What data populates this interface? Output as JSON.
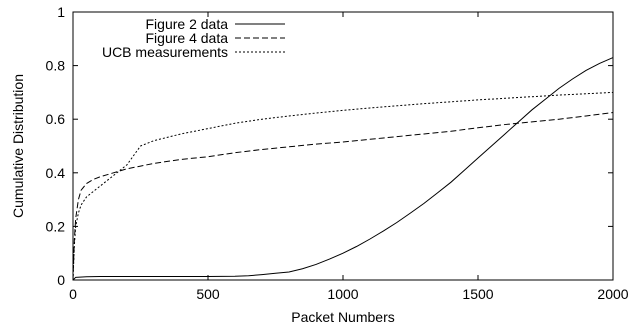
{
  "chart_data": {
    "type": "line",
    "title": "",
    "xlabel": "Packet Numbers",
    "ylabel": "Cumulative Distribution",
    "xlim": [
      0,
      2000
    ],
    "ylim": [
      0,
      1
    ],
    "xticks": [
      "0",
      "500",
      "1000",
      "1500",
      "2000"
    ],
    "yticks": [
      "0",
      "0.2",
      "0.4",
      "0.6",
      "0.8",
      "1"
    ],
    "grid": false,
    "legend_position": "top-left",
    "series": [
      {
        "name": "Figure 2 data",
        "style": "solid",
        "x": [
          0,
          10,
          50,
          100,
          200,
          300,
          400,
          500,
          600,
          650,
          700,
          750,
          800,
          850,
          900,
          950,
          1000,
          1050,
          1100,
          1150,
          1200,
          1250,
          1300,
          1350,
          1400,
          1450,
          1500,
          1550,
          1600,
          1650,
          1700,
          1750,
          1800,
          1850,
          1900,
          1950,
          2000
        ],
        "y": [
          0.0,
          0.01,
          0.012,
          0.013,
          0.013,
          0.013,
          0.013,
          0.013,
          0.014,
          0.016,
          0.02,
          0.025,
          0.03,
          0.042,
          0.058,
          0.078,
          0.1,
          0.125,
          0.153,
          0.183,
          0.215,
          0.25,
          0.286,
          0.325,
          0.365,
          0.41,
          0.455,
          0.5,
          0.545,
          0.59,
          0.635,
          0.675,
          0.715,
          0.75,
          0.782,
          0.808,
          0.83
        ]
      },
      {
        "name": "Figure 4 data",
        "style": "dashed",
        "x": [
          0,
          5,
          10,
          20,
          30,
          50,
          75,
          100,
          150,
          200,
          250,
          300,
          400,
          500,
          600,
          700,
          800,
          900,
          1000,
          1100,
          1200,
          1300,
          1400,
          1500,
          1600,
          1700,
          1800,
          1900,
          2000
        ],
        "y": [
          0.0,
          0.15,
          0.23,
          0.3,
          0.335,
          0.36,
          0.375,
          0.385,
          0.4,
          0.415,
          0.425,
          0.435,
          0.45,
          0.46,
          0.475,
          0.487,
          0.497,
          0.507,
          0.515,
          0.525,
          0.535,
          0.545,
          0.555,
          0.568,
          0.58,
          0.59,
          0.6,
          0.612,
          0.625
        ]
      },
      {
        "name": "UCB measurements",
        "style": "dotted",
        "x": [
          0,
          5,
          10,
          20,
          30,
          50,
          75,
          100,
          150,
          200,
          250,
          300,
          400,
          500,
          600,
          700,
          800,
          900,
          1000,
          1100,
          1200,
          1300,
          1400,
          1500,
          1600,
          1700,
          1800,
          1900,
          2000
        ],
        "y": [
          0.0,
          0.13,
          0.2,
          0.25,
          0.28,
          0.31,
          0.33,
          0.35,
          0.39,
          0.43,
          0.5,
          0.52,
          0.545,
          0.565,
          0.585,
          0.6,
          0.612,
          0.623,
          0.633,
          0.642,
          0.65,
          0.658,
          0.665,
          0.672,
          0.678,
          0.684,
          0.69,
          0.695,
          0.7
        ]
      }
    ]
  }
}
